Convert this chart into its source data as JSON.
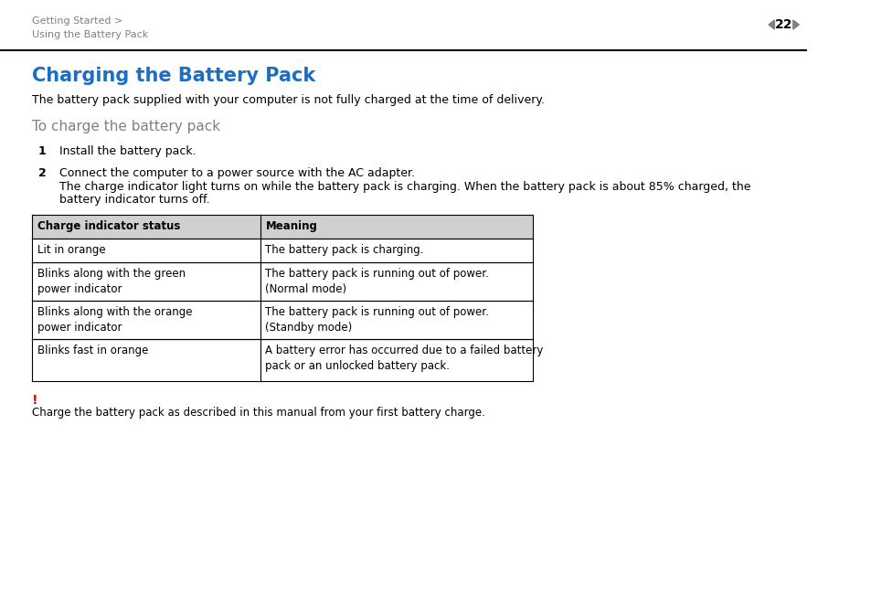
{
  "bg_color": "#ffffff",
  "header_text_line1": "Getting Started >",
  "header_text_line2": "Using the Battery Pack",
  "page_number": "22",
  "header_line_color": "#000000",
  "title": "Charging the Battery Pack",
  "title_color": "#1a6fc4",
  "subtitle_text": "The battery pack supplied with your computer is not fully charged at the time of delivery.",
  "section_title": "To charge the battery pack",
  "section_title_color": "#808080",
  "step1_num": "1",
  "step1_text": "Install the battery pack.",
  "step2_num": "2",
  "step2_text_line1": "Connect the computer to a power source with the AC adapter.",
  "step2_text_line2": "The charge indicator light turns on while the battery pack is charging. When the battery pack is about 85% charged, the",
  "step2_text_line3": "battery indicator turns off.",
  "table_header_col1": "Charge indicator status",
  "table_header_col2": "Meaning",
  "table_header_bg": "#d0d0d0",
  "table_border_color": "#000000",
  "table_rows": [
    {
      "col1": "Lit in orange",
      "col2": "The battery pack is charging."
    },
    {
      "col1": "Blinks along with the green\npower indicator",
      "col2": "The battery pack is running out of power.\n(Normal mode)"
    },
    {
      "col1": "Blinks along with the orange\npower indicator",
      "col2": "The battery pack is running out of power.\n(Standby mode)"
    },
    {
      "col1": "Blinks fast in orange",
      "col2": "A battery error has occurred due to a failed battery\npack or an unlocked battery pack."
    }
  ],
  "warning_exclaim": "!",
  "warning_exclaim_color": "#FF0000",
  "warning_text": "Charge the battery pack as described in this manual from your first battery charge.",
  "header_color": "#808080",
  "arrow_color": "#808080"
}
